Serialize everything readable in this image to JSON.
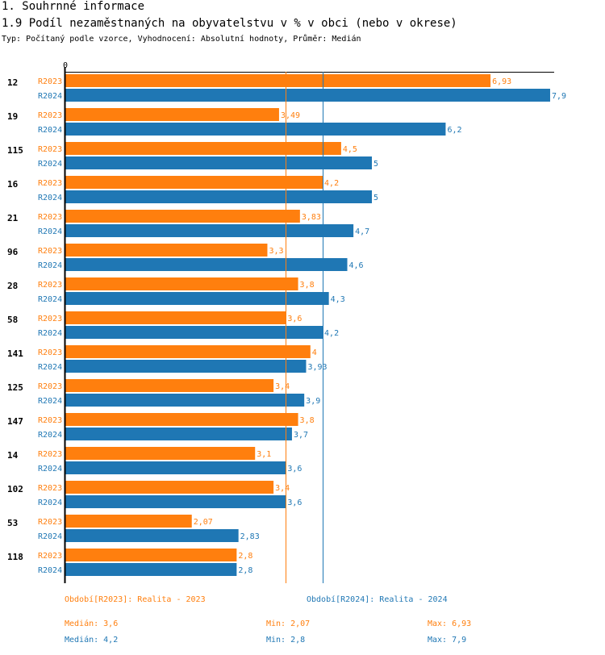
{
  "header": {
    "section": "1. Souhrnné informace",
    "title": "1.9 Podíl nezaměstnaných na obyvatelstvu v % v obci (nebo v okrese)",
    "subtitle": "Typ: Počítaný podle vzorce, Vyhodnocení: Absolutní hodnoty, Průměr: Medián"
  },
  "colors": {
    "r2023": "#ff7f0e",
    "r2024": "#1f77b4"
  },
  "chart_data": {
    "type": "bar",
    "orientation": "horizontal",
    "axis_zero_label": "0",
    "xlim": [
      0,
      7.9
    ],
    "categories": [
      "12",
      "19",
      "115",
      "16",
      "21",
      "96",
      "28",
      "58",
      "141",
      "125",
      "147",
      "14",
      "102",
      "53",
      "118"
    ],
    "series": [
      {
        "name": "R2023",
        "values": [
          6.93,
          3.49,
          4.5,
          4.2,
          3.83,
          3.3,
          3.8,
          3.6,
          4,
          3.4,
          3.8,
          3.1,
          3.4,
          2.07,
          2.8
        ],
        "labels": [
          "6,93",
          "3,49",
          "4,5",
          "4,2",
          "3,83",
          "3,3",
          "3,8",
          "3,6",
          "4",
          "3,4",
          "3,8",
          "3,1",
          "3,4",
          "2,07",
          "2,8"
        ]
      },
      {
        "name": "R2024",
        "values": [
          7.9,
          6.2,
          5,
          5,
          4.7,
          4.6,
          4.3,
          4.2,
          3.93,
          3.9,
          3.7,
          3.6,
          3.6,
          2.83,
          2.8
        ],
        "labels": [
          "7,9",
          "6,2",
          "5",
          "5",
          "4,7",
          "4,6",
          "4,3",
          "4,2",
          "3,93",
          "3,9",
          "3,7",
          "3,6",
          "3,6",
          "2,83",
          "2,8"
        ]
      }
    ],
    "medians": [
      3.6,
      4.2
    ]
  },
  "footer": {
    "legend_2023": "Období[R2023]: Realita - 2023",
    "legend_2024": "Období[R2024]: Realita - 2024",
    "median_2023": "Medián: 3,6",
    "min_2023": "Min: 2,07",
    "max_2023": "Max: 6,93",
    "median_2024": "Medián: 4,2",
    "min_2024": "Min: 2,8",
    "max_2024": "Max: 7,9"
  }
}
